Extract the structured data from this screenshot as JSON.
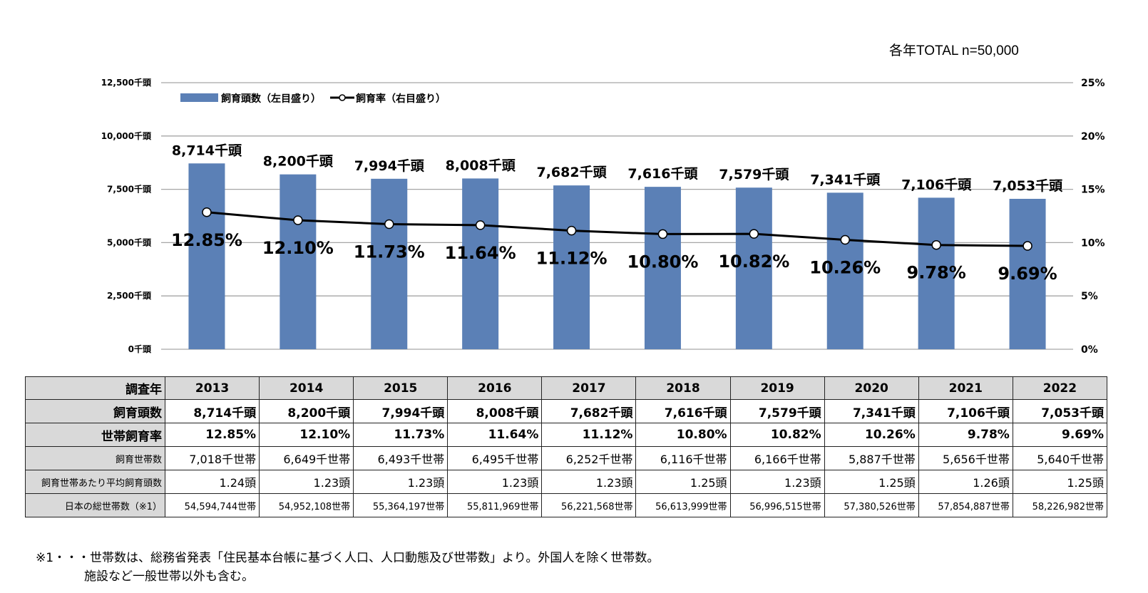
{
  "note_total": "各年TOTAL n=50,000",
  "chart_data": {
    "type": "bar",
    "categories": [
      "2013",
      "2014",
      "2015",
      "2016",
      "2017",
      "2018",
      "2019",
      "2020",
      "2021",
      "2022"
    ],
    "series": [
      {
        "name": "飼育頭数（左目盛り）",
        "kind": "bar",
        "axis": "left",
        "unit": "千頭",
        "values": [
          8714,
          8200,
          7994,
          8008,
          7682,
          7616,
          7579,
          7341,
          7106,
          7053
        ],
        "labels": [
          "8,714千頭",
          "8,200千頭",
          "7,994千頭",
          "8,008千頭",
          "7,682千頭",
          "7,616千頭",
          "7,579千頭",
          "7,341千頭",
          "7,106千頭",
          "7,053千頭"
        ]
      },
      {
        "name": "飼育率（右目盛り）",
        "kind": "line",
        "axis": "right",
        "unit": "%",
        "values": [
          12.85,
          12.1,
          11.73,
          11.64,
          11.12,
          10.8,
          10.82,
          10.26,
          9.78,
          9.69
        ],
        "labels": [
          "12.85%",
          "12.10%",
          "11.73%",
          "11.64%",
          "11.12%",
          "10.80%",
          "10.82%",
          "10.26%",
          "9.78%",
          "9.69%"
        ]
      }
    ],
    "y_left": {
      "ylim": [
        0,
        12500
      ],
      "ticks": [
        0,
        2500,
        5000,
        7500,
        10000,
        12500
      ],
      "tick_labels": [
        "0千頭",
        "2,500千頭",
        "5,000千頭",
        "7,500千頭",
        "10,000千頭",
        "12,500千頭"
      ]
    },
    "y_right": {
      "ylim": [
        0,
        25
      ],
      "ticks": [
        0,
        5,
        10,
        15,
        20,
        25
      ],
      "tick_labels": [
        "0%",
        "5%",
        "10%",
        "15%",
        "20%",
        "25%"
      ]
    },
    "grid": true,
    "legend_position": "top-left",
    "colors": {
      "bar": "#5b80b6",
      "line": "#000000",
      "grid": "#a6a6a6"
    }
  },
  "table": {
    "header_label": "調査年",
    "years": [
      "2013",
      "2014",
      "2015",
      "2016",
      "2017",
      "2018",
      "2019",
      "2020",
      "2021",
      "2022"
    ],
    "rows": [
      {
        "label": "飼育頭数",
        "style": "bold",
        "values": [
          "8,714千頭",
          "8,200千頭",
          "7,994千頭",
          "8,008千頭",
          "7,682千頭",
          "7,616千頭",
          "7,579千頭",
          "7,341千頭",
          "7,106千頭",
          "7,053千頭"
        ]
      },
      {
        "label": "世帯飼育率",
        "style": "bold",
        "values": [
          "12.85%",
          "12.10%",
          "11.73%",
          "11.64%",
          "11.12%",
          "10.80%",
          "10.82%",
          "10.26%",
          "9.78%",
          "9.69%"
        ]
      },
      {
        "label": "飼育世帯数",
        "style": "norm",
        "values": [
          "7,018千世帯",
          "6,649千世帯",
          "6,493千世帯",
          "6,495千世帯",
          "6,252千世帯",
          "6,116千世帯",
          "6,166千世帯",
          "5,887千世帯",
          "5,656千世帯",
          "5,640千世帯"
        ]
      },
      {
        "label": "飼育世帯あたり平均飼育頭数",
        "style": "norm",
        "values": [
          "1.24頭",
          "1.23頭",
          "1.23頭",
          "1.23頭",
          "1.23頭",
          "1.25頭",
          "1.23頭",
          "1.25頭",
          "1.26頭",
          "1.25頭"
        ]
      },
      {
        "label": "日本の総世帯数（※1）",
        "style": "small",
        "values": [
          "54,594,744世帯",
          "54,952,108世帯",
          "55,364,197世帯",
          "55,811,969世帯",
          "56,221,568世帯",
          "56,613,999世帯",
          "56,996,515世帯",
          "57,380,526世帯",
          "57,854,887世帯",
          "58,226,982世帯"
        ]
      }
    ]
  },
  "footnote": {
    "line1": "※1・・・世帯数は、総務省発表「住民基本台帳に基づく人口、人口動態及び世帯数」より。外国人を除く世帯数。",
    "line2": "施設など一般世帯以外も含む。"
  }
}
